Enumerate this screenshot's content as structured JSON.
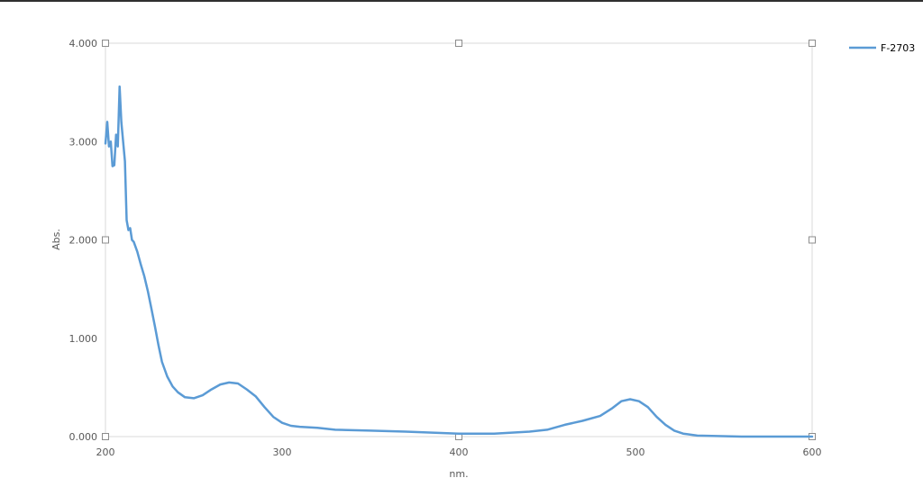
{
  "chart_data": {
    "type": "line",
    "xlabel": "nm.",
    "ylabel": "Abs.",
    "xlim": [
      200,
      600
    ],
    "ylim": [
      0,
      4
    ],
    "x_ticks": [
      "200",
      "300",
      "400",
      "500",
      "600"
    ],
    "y_ticks": [
      "0.000",
      "1.000",
      "2.000",
      "3.000",
      "4.000"
    ],
    "grid": false,
    "legend_position": "top-right",
    "series": [
      {
        "name": "F-2703",
        "color": "#5b9bd5",
        "points": [
          [
            200,
            2.98
          ],
          [
            201,
            3.2
          ],
          [
            202,
            2.95
          ],
          [
            203,
            3.0
          ],
          [
            204,
            2.75
          ],
          [
            205,
            2.76
          ],
          [
            206,
            3.07
          ],
          [
            207,
            2.95
          ],
          [
            208,
            3.56
          ],
          [
            209,
            3.2
          ],
          [
            210,
            3.0
          ],
          [
            211,
            2.8
          ],
          [
            212,
            2.2
          ],
          [
            213,
            2.1
          ],
          [
            214,
            2.12
          ],
          [
            215,
            2.0
          ],
          [
            216,
            1.98
          ],
          [
            218,
            1.88
          ],
          [
            220,
            1.75
          ],
          [
            222,
            1.63
          ],
          [
            224,
            1.48
          ],
          [
            226,
            1.3
          ],
          [
            228,
            1.12
          ],
          [
            230,
            0.93
          ],
          [
            232,
            0.76
          ],
          [
            235,
            0.61
          ],
          [
            238,
            0.51
          ],
          [
            241,
            0.45
          ],
          [
            245,
            0.4
          ],
          [
            250,
            0.39
          ],
          [
            255,
            0.42
          ],
          [
            260,
            0.48
          ],
          [
            265,
            0.53
          ],
          [
            270,
            0.55
          ],
          [
            275,
            0.54
          ],
          [
            280,
            0.48
          ],
          [
            285,
            0.41
          ],
          [
            290,
            0.3
          ],
          [
            295,
            0.2
          ],
          [
            300,
            0.14
          ],
          [
            305,
            0.11
          ],
          [
            310,
            0.1
          ],
          [
            320,
            0.09
          ],
          [
            330,
            0.07
          ],
          [
            350,
            0.06
          ],
          [
            370,
            0.05
          ],
          [
            400,
            0.03
          ],
          [
            420,
            0.03
          ],
          [
            440,
            0.05
          ],
          [
            450,
            0.07
          ],
          [
            460,
            0.12
          ],
          [
            470,
            0.16
          ],
          [
            480,
            0.21
          ],
          [
            487,
            0.29
          ],
          [
            492,
            0.36
          ],
          [
            497,
            0.38
          ],
          [
            502,
            0.36
          ],
          [
            507,
            0.3
          ],
          [
            512,
            0.2
          ],
          [
            517,
            0.12
          ],
          [
            522,
            0.06
          ],
          [
            527,
            0.03
          ],
          [
            535,
            0.01
          ],
          [
            560,
            0.0
          ],
          [
            600,
            0.0
          ]
        ]
      }
    ]
  }
}
